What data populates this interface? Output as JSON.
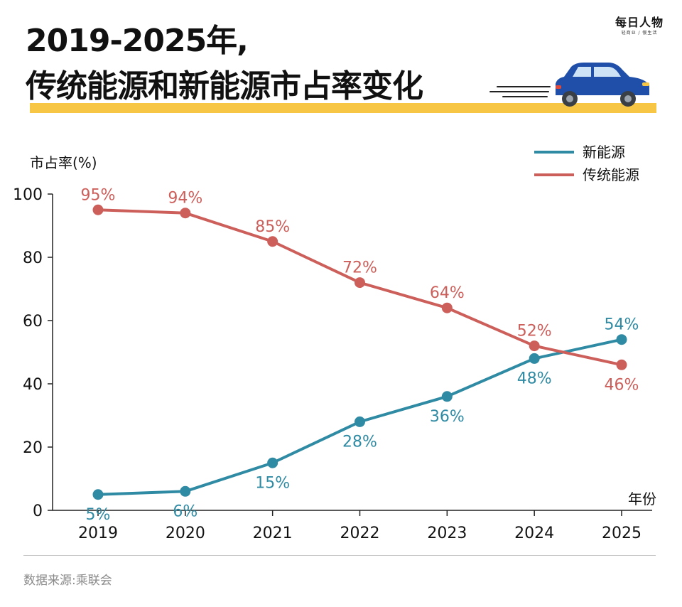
{
  "title": {
    "line1": "2019-2025年,",
    "line2": "传统能源和新能源市占率变化"
  },
  "brand": {
    "name": "每日人物",
    "slogan": "轻商业 / 慢生活"
  },
  "source": "数据来源:乘联会",
  "colors": {
    "new_energy": "#2f8aa3",
    "traditional": "#cd5f5b",
    "accent": "#f6c644",
    "car": "#1f4fa8"
  },
  "chart_data": {
    "type": "line",
    "ylabel": "市占率(%)",
    "xlabel": "年份",
    "ylim": [
      0,
      100
    ],
    "yticks": [
      "0",
      "20",
      "40",
      "60",
      "80",
      "100"
    ],
    "categories": [
      "2019",
      "2020",
      "2021",
      "2022",
      "2023",
      "2024",
      "2025"
    ],
    "legend_position": "top-right",
    "series": [
      {
        "name": "新能源",
        "color": "#2f8aa3",
        "values": [
          5,
          6,
          15,
          28,
          36,
          48,
          54
        ],
        "labels": [
          "5%",
          "6%",
          "15%",
          "28%",
          "36%",
          "48%",
          "54%"
        ]
      },
      {
        "name": "传统能源",
        "color": "#cd5f5b",
        "values": [
          95,
          94,
          85,
          72,
          64,
          52,
          46
        ],
        "labels": [
          "95%",
          "94%",
          "85%",
          "72%",
          "64%",
          "52%",
          "46%"
        ]
      }
    ]
  }
}
